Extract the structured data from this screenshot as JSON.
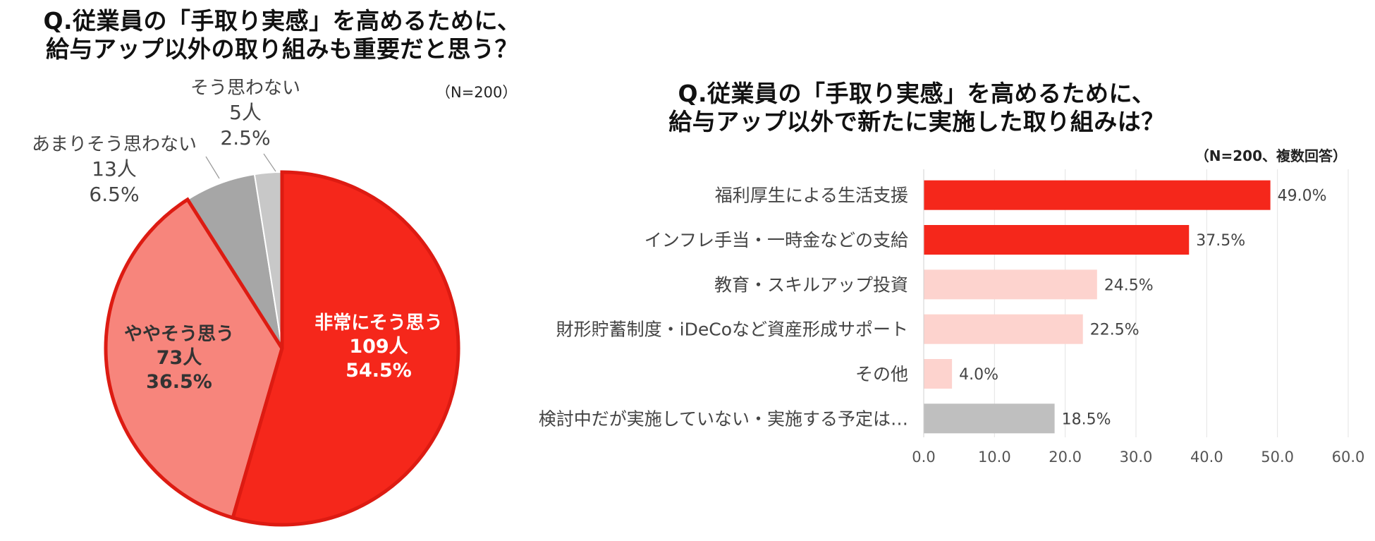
{
  "pie_title": {
    "line1": "Q.従業員の「手取り実感」を高めるために、",
    "line2": "給与アップ以外の取り組みも重要だと思う？"
  },
  "pie_note": "（N=200）",
  "bar_title": {
    "line1": "Q.従業員の「手取り実感」を高めるために、",
    "line2": "給与アップ以外で新たに実施した取り組みは？"
  },
  "bar_note": "（N=200、複数回答）",
  "chart_data": [
    {
      "type": "pie",
      "slices": [
        {
          "label": "非常にそう思う",
          "count": "109人",
          "percent": "54.5%",
          "value": 54.5,
          "color": "#f5271b"
        },
        {
          "label": "ややそう思う",
          "count": "73人",
          "percent": "36.5%",
          "value": 36.5,
          "color": "#f7857c"
        },
        {
          "label": "あまりそう思わない",
          "count": "13人",
          "percent": "6.5%",
          "value": 6.5,
          "color": "#a6a6a6"
        },
        {
          "label": "そう思わない",
          "count": "5人",
          "percent": "2.5%",
          "value": 2.5,
          "color": "#c8c8c8"
        }
      ]
    },
    {
      "type": "bar",
      "orientation": "horizontal",
      "categories": [
        "福利厚生による生活支援",
        "インフレ手当・一時金などの支給",
        "教育・スキルアップ投資",
        "財形貯蓄制度・iDeCoなど資産形成サポート",
        "その他",
        "検討中だが実施していない・実施する予定は…"
      ],
      "values": [
        49.0,
        37.5,
        24.5,
        22.5,
        4.0,
        18.5
      ],
      "value_labels": [
        "49.0%",
        "37.5%",
        "24.5%",
        "22.5%",
        "4.0%",
        "18.5%"
      ],
      "colors": [
        "#f5271b",
        "#f5271b",
        "#fdd3ce",
        "#fdd3ce",
        "#fdd3ce",
        "#bfbfbf"
      ],
      "xlim": [
        0,
        60
      ],
      "xticks": [
        "0.0",
        "10.0",
        "20.0",
        "30.0",
        "40.0",
        "50.0",
        "60.0"
      ],
      "grid": true
    }
  ]
}
